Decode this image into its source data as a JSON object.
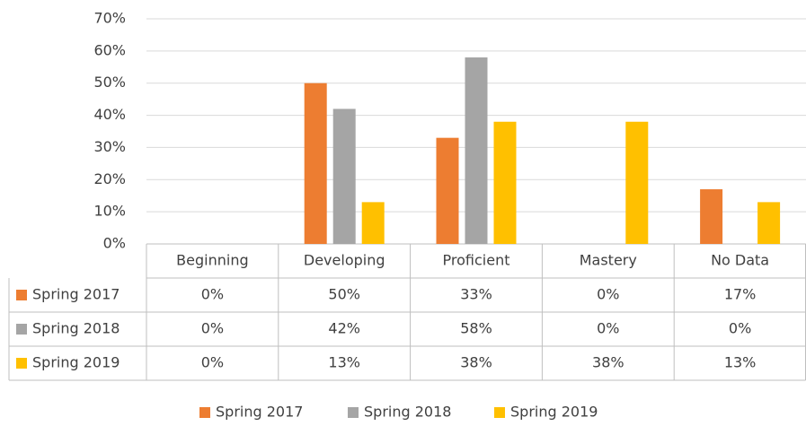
{
  "chart_data": {
    "type": "bar",
    "categories": [
      "Beginning",
      "Developing",
      "Proficient",
      "Mastery",
      "No Data"
    ],
    "series": [
      {
        "name": "Spring 2017",
        "color": "#ed7d31",
        "values": [
          0,
          50,
          33,
          0,
          17
        ],
        "value_labels": [
          "0%",
          "50%",
          "33%",
          "0%",
          "17%"
        ]
      },
      {
        "name": "Spring 2018",
        "color": "#a5a5a5",
        "values": [
          0,
          42,
          58,
          0,
          0
        ],
        "value_labels": [
          "0%",
          "42%",
          "58%",
          "0%",
          "0%"
        ]
      },
      {
        "name": "Spring 2019",
        "color": "#ffc000",
        "values": [
          0,
          13,
          38,
          38,
          13
        ],
        "value_labels": [
          "0%",
          "13%",
          "38%",
          "38%",
          "13%"
        ]
      }
    ],
    "ylim": [
      0,
      70
    ],
    "yticks": [
      {
        "value": 0,
        "label": "0%"
      },
      {
        "value": 10,
        "label": "10%"
      },
      {
        "value": 20,
        "label": "20%"
      },
      {
        "value": 30,
        "label": "30%"
      },
      {
        "value": 40,
        "label": "40%"
      },
      {
        "value": 50,
        "label": "50%"
      },
      {
        "value": 60,
        "label": "60%"
      },
      {
        "value": 70,
        "label": "70%"
      }
    ],
    "grid": true,
    "legend": "bottom"
  }
}
